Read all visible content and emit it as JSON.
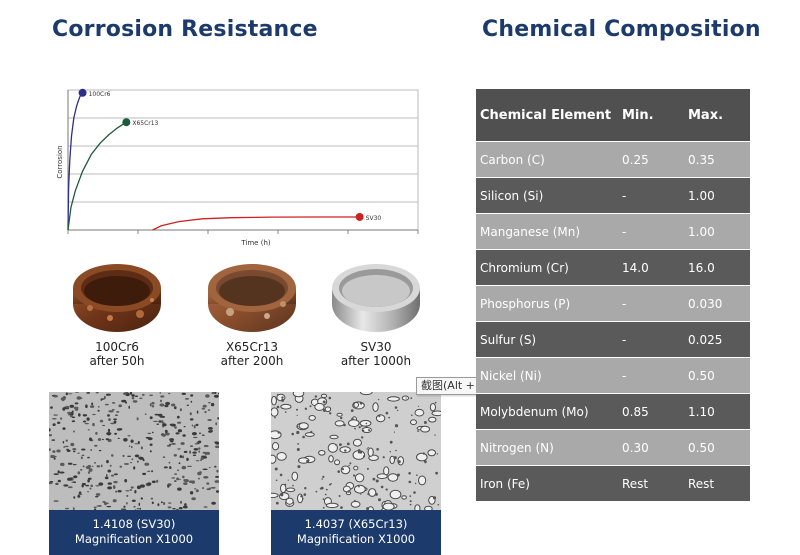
{
  "headings": {
    "left": "Corrosion Resistance",
    "right": "Chemical Composition"
  },
  "chart_data": {
    "type": "line",
    "xlabel": "Time (h)",
    "ylabel": "Corrosion",
    "xlim": [
      0,
      1200
    ],
    "ylim": [
      0,
      100
    ],
    "grid": true,
    "series": [
      {
        "name": "100Cr6",
        "color": "#2e2e8c",
        "x": [
          0,
          2,
          6,
          12,
          20,
          30,
          40,
          50
        ],
        "y": [
          0,
          30,
          50,
          67,
          80,
          89,
          95,
          98
        ]
      },
      {
        "name": "X65Cr13",
        "color": "#1f5a3a",
        "x": [
          0,
          10,
          25,
          50,
          80,
          110,
          140,
          170,
          200
        ],
        "y": [
          0,
          16,
          28,
          42,
          54,
          62,
          68,
          73,
          77
        ]
      },
      {
        "name": "SV30",
        "color": "#cc2222",
        "x": [
          290,
          320,
          380,
          460,
          560,
          700,
          850,
          1000
        ],
        "y": [
          0,
          3,
          6,
          8,
          8.8,
          9.2,
          9.3,
          9.3
        ]
      }
    ]
  },
  "rings": [
    {
      "name": "100Cr6",
      "caption": "after 50h",
      "style": "rusty"
    },
    {
      "name": "X65Cr13",
      "caption": "after 200h",
      "style": "rusty-light"
    },
    {
      "name": "SV30",
      "caption": "after 1000h",
      "style": "clean"
    }
  ],
  "micrographs": [
    {
      "line1": "1.4108 (SV30)",
      "line2": "Magnification X1000"
    },
    {
      "line1": "1.4037 (X65Cr13)",
      "line2": "Magnification X1000"
    }
  ],
  "tooltip": "截图(Alt + A)",
  "table": {
    "headers": [
      "Chemical Element",
      "Min.",
      "Max."
    ],
    "rows": [
      {
        "element": "Carbon (C)",
        "min": "0.25",
        "max": "0.35"
      },
      {
        "element": "Silicon (Si)",
        "min": "-",
        "max": "1.00"
      },
      {
        "element": "Manganese (Mn)",
        "min": "-",
        "max": "1.00"
      },
      {
        "element": "Chromium (Cr)",
        "min": "14.0",
        "max": "16.0"
      },
      {
        "element": "Phosphorus (P)",
        "min": "-",
        "max": "0.030"
      },
      {
        "element": "Sulfur (S)",
        "min": "-",
        "max": "0.025"
      },
      {
        "element": "Nickel (Ni)",
        "min": "-",
        "max": "0.50"
      },
      {
        "element": "Molybdenum (Mo)",
        "min": "0.85",
        "max": "1.10"
      },
      {
        "element": "Nitrogen (N)",
        "min": "0.30",
        "max": "0.50"
      },
      {
        "element": "Iron (Fe)",
        "min": "Rest",
        "max": "Rest"
      }
    ]
  }
}
